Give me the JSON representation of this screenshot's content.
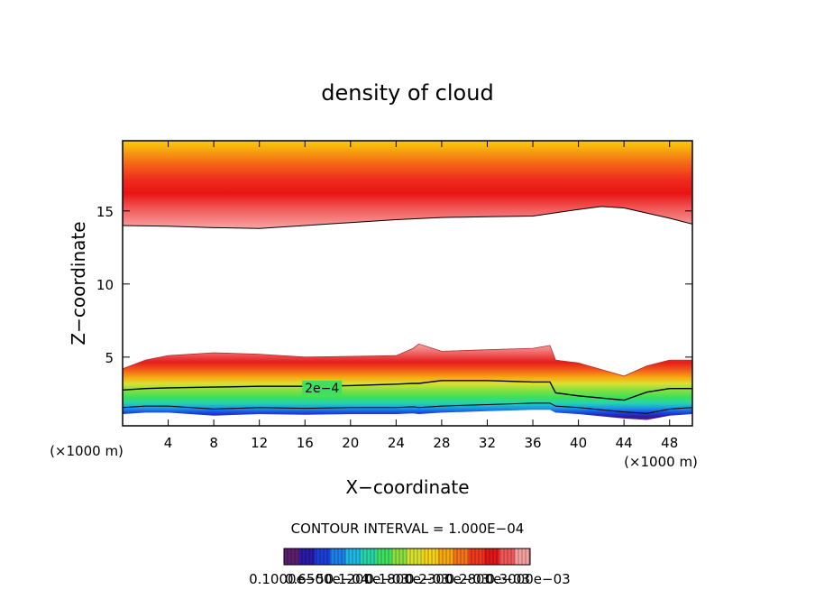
{
  "chart_data": {
    "type": "heatmap",
    "title": "density of cloud",
    "xlabel": "X−coordinate",
    "ylabel": "Z−coordinate",
    "x_unit_left": "(×1000 m)",
    "x_unit_right": "(×1000 m)",
    "xlim": [
      0,
      50
    ],
    "ylim": [
      0.3,
      19.8
    ],
    "x_ticks": [
      4,
      8,
      12,
      16,
      20,
      24,
      28,
      32,
      36,
      40,
      44,
      48
    ],
    "x_tick_labels": [
      "4",
      "8",
      "12",
      "16",
      "20",
      "24",
      "28",
      "32",
      "36",
      "40",
      "44",
      "48"
    ],
    "y_ticks": [
      5,
      10,
      15
    ],
    "y_tick_labels": [
      "5",
      "10",
      "15"
    ],
    "contour_label": "2e−4",
    "contour_label_position": [
      17.5,
      2.9
    ],
    "contour_interval_text": "CONTOUR INTERVAL = 1.000E−04",
    "upper_layer": {
      "x": [
        0,
        4,
        8,
        12,
        16,
        20,
        24,
        28,
        32,
        36,
        40,
        42,
        44,
        48,
        50
      ],
      "base_z": [
        14.0,
        13.95,
        13.85,
        13.8,
        14.0,
        14.2,
        14.4,
        14.55,
        14.6,
        14.65,
        15.1,
        15.3,
        15.2,
        14.5,
        14.1
      ],
      "top_z": 19.8
    },
    "lower_layer": {
      "x": [
        0,
        2,
        4,
        8,
        12,
        16,
        20,
        24,
        25.5,
        26,
        28,
        32,
        36,
        37.5,
        38,
        40,
        44,
        46,
        48,
        50
      ],
      "top_z": [
        4.2,
        4.8,
        5.1,
        5.3,
        5.2,
        5.0,
        5.05,
        5.1,
        5.6,
        5.9,
        5.4,
        5.5,
        5.6,
        5.8,
        4.8,
        4.6,
        3.7,
        4.4,
        4.8,
        4.8
      ],
      "contour_z": [
        2.75,
        2.85,
        2.9,
        2.95,
        3.0,
        3.0,
        3.05,
        3.15,
        3.2,
        3.2,
        3.4,
        3.4,
        3.3,
        3.3,
        2.55,
        2.35,
        2.05,
        2.6,
        2.85,
        2.85
      ],
      "base_z": [
        1.1,
        1.2,
        1.2,
        1.0,
        1.1,
        1.05,
        1.1,
        1.1,
        1.15,
        1.1,
        1.2,
        1.3,
        1.4,
        1.4,
        1.2,
        1.1,
        0.8,
        0.7,
        1.0,
        1.1
      ]
    },
    "colorbar": {
      "colors": [
        "#5a1e6e",
        "#2a1aa8",
        "#1b3fd6",
        "#1c80e8",
        "#1fb8e0",
        "#27d6a8",
        "#3fe060",
        "#8be040",
        "#d6e030",
        "#f6d21a",
        "#f7a812",
        "#f5731a",
        "#f0381e",
        "#e21818",
        "#f05858",
        "#f7a0a0"
      ],
      "labels": [
        "0.1000e−5",
        "0.6500e−04",
        "0.1200e−03",
        "0.1800e−03",
        "0.2300e−03",
        "0.2800e−03",
        "0.3000e−03"
      ]
    }
  }
}
